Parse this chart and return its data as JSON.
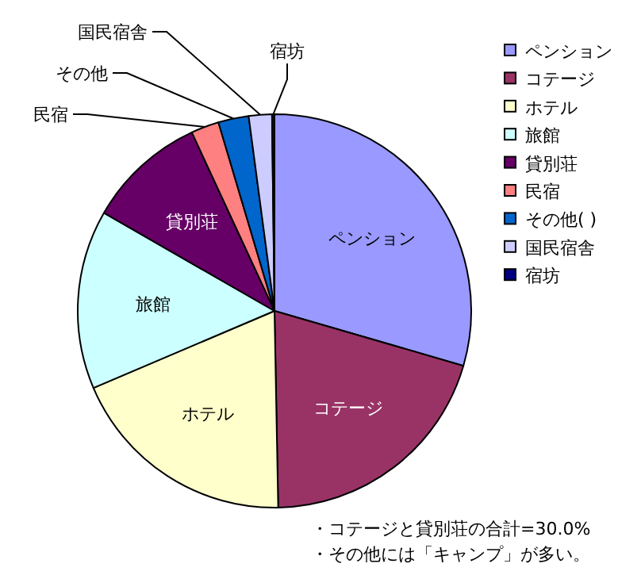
{
  "chart_data": {
    "type": "pie",
    "categories": [
      "ペンション",
      "コテージ",
      "ホテル",
      "旅館",
      "貸別荘",
      "民宿",
      "その他( )",
      "国民宿舎",
      "宿坊"
    ],
    "values": [
      29.5,
      20.2,
      18.9,
      14.7,
      9.8,
      2.3,
      2.5,
      1.9,
      0.2
    ],
    "colors": [
      "#9999ff",
      "#993366",
      "#ffffcc",
      "#ccffff",
      "#660066",
      "#ff8080",
      "#0066cc",
      "#ccccff",
      "#000080"
    ],
    "legend": "right",
    "annotations": [
      "・コテージと貸別荘の合計=30.0%",
      "・その他には「キャンプ」が多い。",
      {
        "text": "その他",
        "x": "その他( )"
      }
    ]
  }
}
